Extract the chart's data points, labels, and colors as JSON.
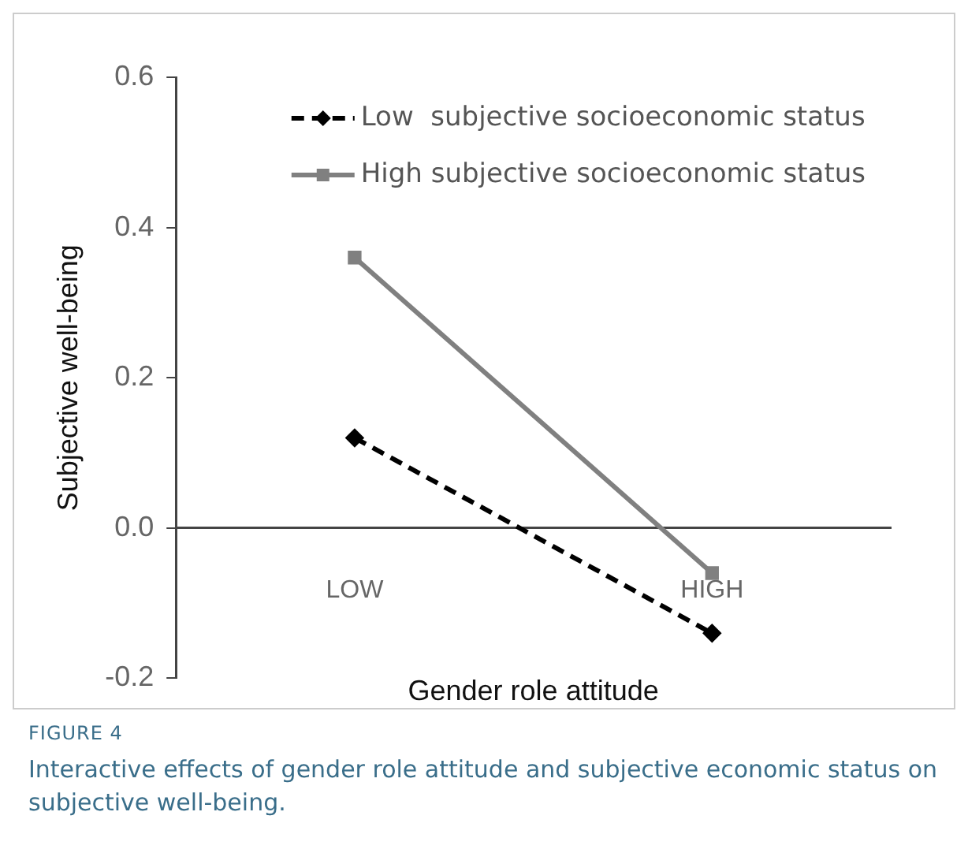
{
  "chart_data": {
    "type": "line",
    "xlabel": "Gender role attitude",
    "ylabel": "Subjective well-being",
    "categories": [
      "LOW",
      "HIGH"
    ],
    "series": [
      {
        "name": "Low  subjective socioeconomic status",
        "color": "#000000",
        "values": [
          0.12,
          -0.14
        ],
        "line_style": "dashed",
        "marker": "diamond"
      },
      {
        "name": "High subjective socioeconomic status",
        "color": "#808080",
        "values": [
          0.36,
          -0.06
        ],
        "line_style": "solid",
        "marker": "square"
      }
    ],
    "ylim": [
      -0.2,
      0.6
    ],
    "yticks": [
      {
        "value": -0.2,
        "label": "-0.2"
      },
      {
        "value": 0,
        "label": "0.0"
      },
      {
        "value": 0.2,
        "label": "0.2"
      },
      {
        "value": 0.4,
        "label": "0.4"
      },
      {
        "value": 0.6,
        "label": "0.6"
      }
    ],
    "legend": "top right",
    "grid": false,
    "annotations": [
      "FIGURE 4",
      "Interactive effects of gender role attitude and subjective economic status on subjective well-being."
    ]
  }
}
